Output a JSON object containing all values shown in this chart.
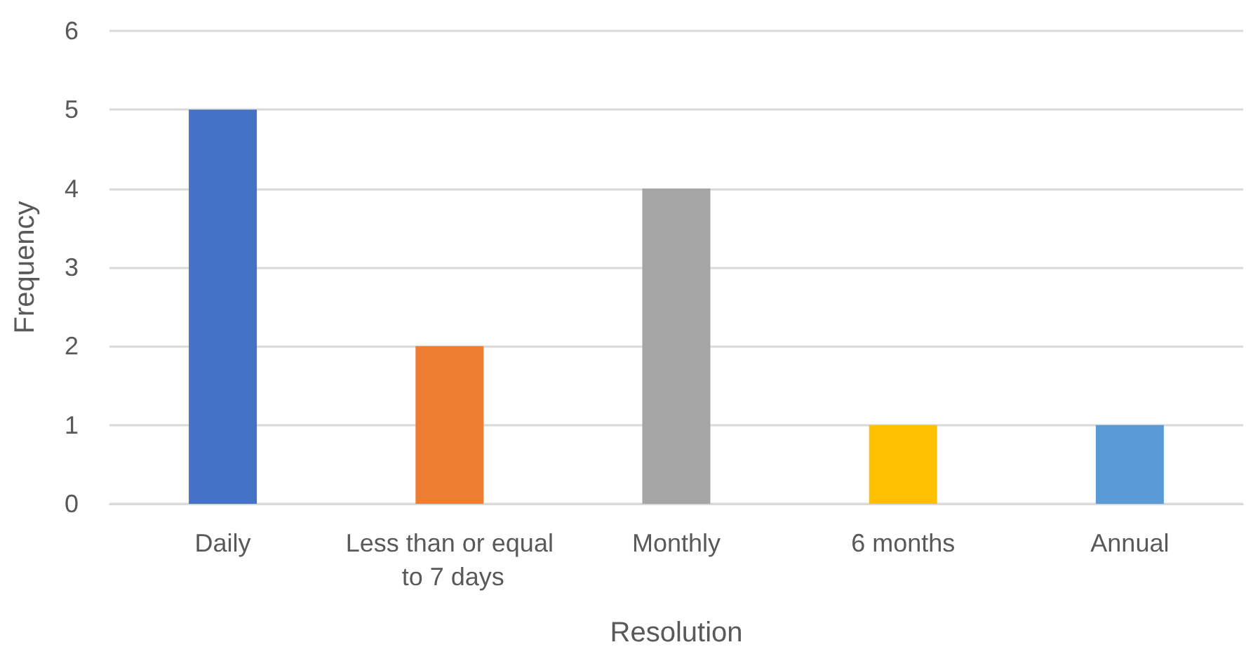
{
  "chart_data": {
    "type": "bar",
    "xlabel": "Resolution",
    "ylabel": "Frequency",
    "categories": [
      "Daily",
      "Less than or equal to 7 days",
      "Monthly",
      "6 months",
      "Annual"
    ],
    "values": [
      5,
      2,
      4,
      1,
      1
    ],
    "colors": [
      "#4472c4",
      "#ed7d31",
      "#a5a5a5",
      "#ffc000",
      "#5b9bd5"
    ],
    "ylim": [
      0,
      6
    ],
    "yticks": [
      0,
      1,
      2,
      3,
      4,
      5,
      6
    ],
    "grid": "y"
  }
}
